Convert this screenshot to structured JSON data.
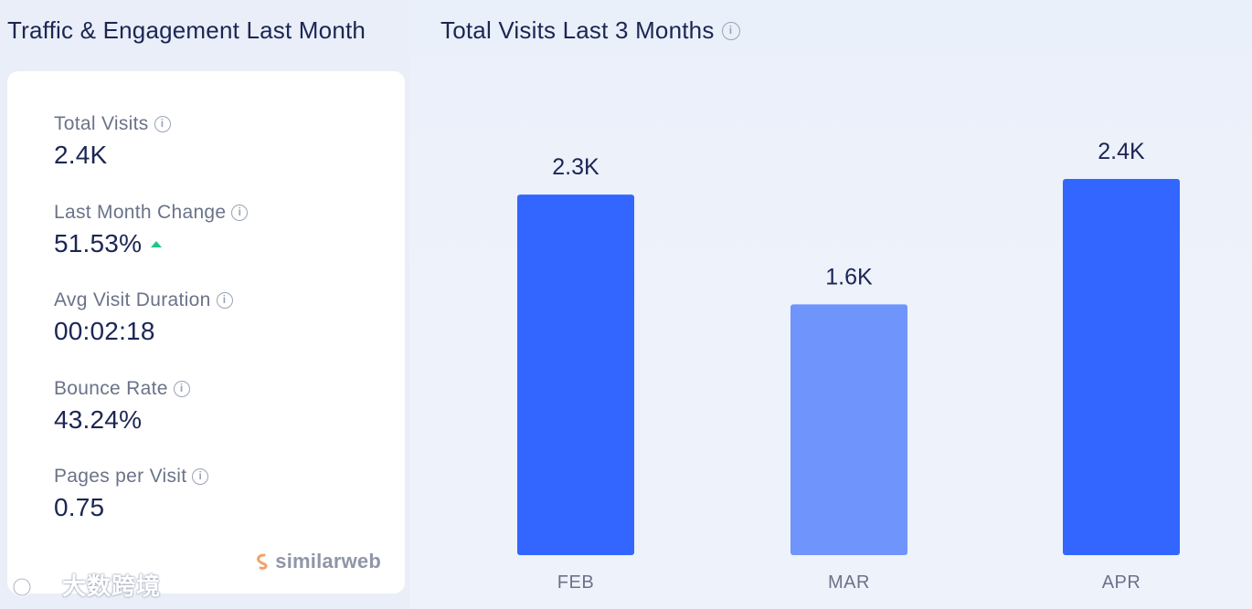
{
  "left_panel": {
    "title": "Traffic & Engagement Last Month",
    "metrics": [
      {
        "label": "Total Visits",
        "value": "2.4K"
      },
      {
        "label": "Last Month Change",
        "value": "51.53%",
        "trend": "up"
      },
      {
        "label": "Avg Visit Duration",
        "value": "00:02:18"
      },
      {
        "label": "Bounce Rate",
        "value": "43.24%"
      },
      {
        "label": "Pages per Visit",
        "value": "0.75"
      }
    ],
    "brand": "similarweb"
  },
  "right_panel": {
    "title": "Total Visits Last 3 Months"
  },
  "watermark": "大数跨境",
  "icons": {
    "info": "info-icon",
    "trend_up": "triangle-up-icon",
    "brand_logo": "similarweb-logo-icon"
  },
  "colors": {
    "bar_primary": "#3366ff",
    "bar_light": "#6f94fb",
    "trend_up": "#1ec686",
    "text_dark": "#1b2653"
  },
  "chart_data": {
    "type": "bar",
    "categories": [
      "FEB",
      "MAR",
      "APR"
    ],
    "values": [
      2300,
      1600,
      2400
    ],
    "value_labels": [
      "2.3K",
      "1.6K",
      "2.4K"
    ],
    "highlight": [
      true,
      false,
      true
    ],
    "title": "Total Visits Last 3 Months",
    "xlabel": "",
    "ylabel": "",
    "ylim": [
      0,
      2400
    ],
    "grid": false
  }
}
